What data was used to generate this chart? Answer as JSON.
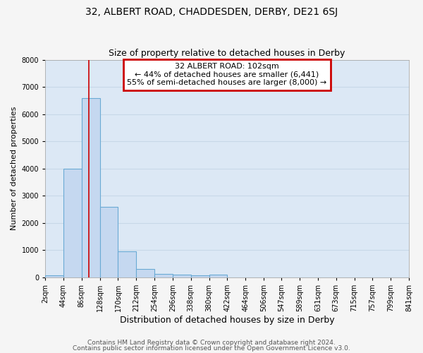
{
  "title": "32, ALBERT ROAD, CHADDESDEN, DERBY, DE21 6SJ",
  "subtitle": "Size of property relative to detached houses in Derby",
  "xlabel": "Distribution of detached houses by size in Derby",
  "ylabel": "Number of detached properties",
  "footer_line1": "Contains HM Land Registry data © Crown copyright and database right 2024.",
  "footer_line2": "Contains public sector information licensed under the Open Government Licence v3.0.",
  "bin_edges": [
    2,
    44,
    86,
    128,
    170,
    212,
    254,
    296,
    338,
    380,
    422,
    464,
    506,
    547,
    589,
    631,
    673,
    715,
    757,
    799,
    841
  ],
  "bar_heights": [
    80,
    4000,
    6600,
    2600,
    950,
    320,
    130,
    100,
    80,
    100,
    0,
    0,
    0,
    0,
    0,
    0,
    0,
    0,
    0,
    0
  ],
  "bar_color": "#c5d8f0",
  "bar_edge_color": "#6aaad4",
  "red_line_x": 102,
  "annotation_title": "32 ALBERT ROAD: 102sqm",
  "annotation_line1": "← 44% of detached houses are smaller (6,441)",
  "annotation_line2": "55% of semi-detached houses are larger (8,000) →",
  "annotation_box_color": "#cc0000",
  "ylim": [
    0,
    8000
  ],
  "yticks": [
    0,
    1000,
    2000,
    3000,
    4000,
    5000,
    6000,
    7000,
    8000
  ],
  "xtick_labels": [
    "2sqm",
    "44sqm",
    "86sqm",
    "128sqm",
    "170sqm",
    "212sqm",
    "254sqm",
    "296sqm",
    "338sqm",
    "380sqm",
    "422sqm",
    "464sqm",
    "506sqm",
    "547sqm",
    "589sqm",
    "631sqm",
    "673sqm",
    "715sqm",
    "757sqm",
    "799sqm",
    "841sqm"
  ],
  "plot_bg_color": "#dce8f5",
  "fig_bg_color": "#f5f5f5",
  "grid_color": "#c8d8e8",
  "title_fontsize": 10,
  "subtitle_fontsize": 9,
  "xlabel_fontsize": 9,
  "ylabel_fontsize": 8,
  "tick_fontsize": 7,
  "annotation_fontsize": 8,
  "footer_fontsize": 6.5
}
